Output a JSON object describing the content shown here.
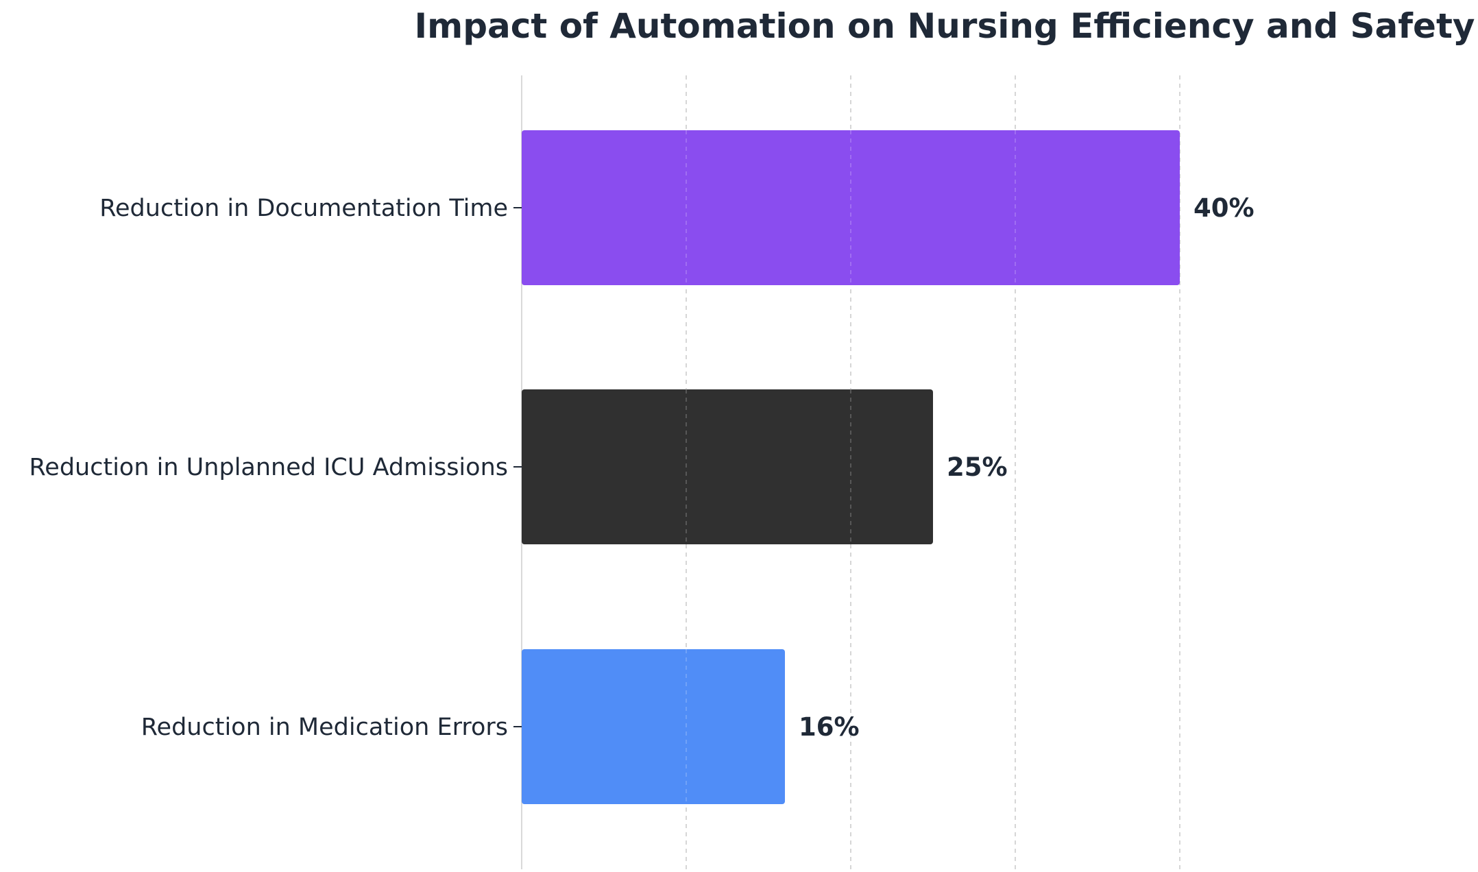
{
  "chart_data": {
    "type": "bar",
    "orientation": "horizontal",
    "title": "Impact of Automation on Nursing Efficiency and Safety",
    "xlabel": "",
    "ylabel": "",
    "categories": [
      "Reduction in Documentation Time",
      "Reduction in Unplanned ICU Admissions",
      "Reduction in Medication Errors"
    ],
    "values": [
      40,
      25,
      16
    ],
    "value_labels": [
      "40%",
      "25%",
      "16%"
    ],
    "colors": [
      "#8A4DEF",
      "#303030",
      "#508DF7"
    ],
    "xlim": [
      0,
      45
    ],
    "x_gridlines": [
      10,
      20,
      30,
      40
    ],
    "grid": true,
    "grid_style": "dashed vertical",
    "x_tick_labels_shown": false,
    "legend": "none",
    "text_color": "#1F2937"
  }
}
